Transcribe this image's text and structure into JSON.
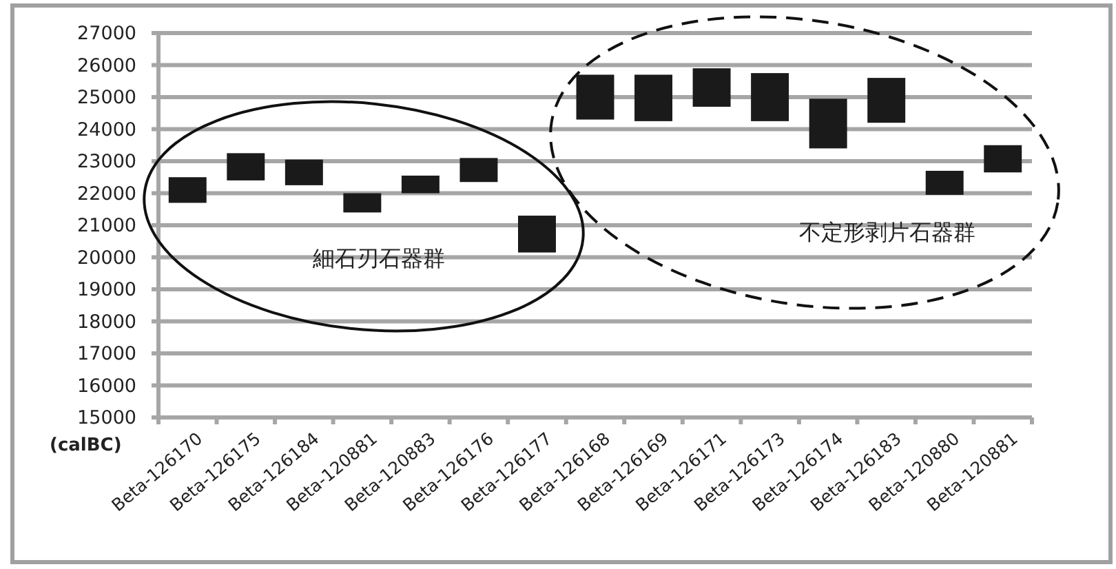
{
  "chart_data": {
    "type": "bar",
    "ylabel": "(calBC)",
    "categories": [
      "Beta-126170",
      "Beta-126175",
      "Beta-126184",
      "Beta-120881",
      "Beta-120883",
      "Beta-126176",
      "Beta-126177",
      "Beta-126168",
      "Beta-126169",
      "Beta-126171",
      "Beta-126173",
      "Beta-126174",
      "Beta-126183",
      "Beta-120880",
      "Beta-120881"
    ],
    "base": [
      21700,
      22400,
      22250,
      21400,
      22000,
      22350,
      20150,
      24300,
      24250,
      24700,
      24250,
      23400,
      24200,
      21950,
      22650
    ],
    "values": [
      800,
      850,
      800,
      600,
      550,
      750,
      1150,
      1400,
      1450,
      1200,
      1500,
      1550,
      1400,
      750,
      850
    ],
    "color": "#1a1a1a",
    "ylim": [
      15000,
      27000
    ],
    "yticks": [
      15000,
      16000,
      17000,
      18000,
      19000,
      20000,
      21000,
      22000,
      23000,
      24000,
      25000,
      26000,
      27000
    ],
    "grid": "y",
    "annotations": [
      "細石刃石器群",
      "不定形剥片石器群"
    ]
  }
}
